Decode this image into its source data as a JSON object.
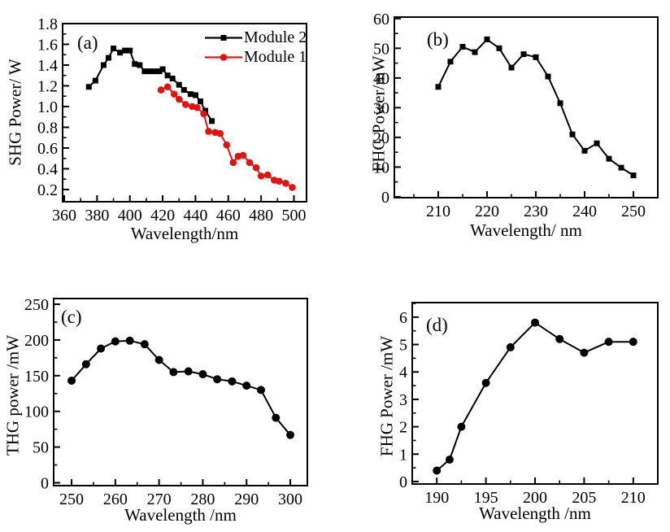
{
  "figure": {
    "background": "#ffffff",
    "frame_color": "#000000",
    "accent_red": "#e21212"
  },
  "chart_data": [
    {
      "id": "a",
      "type": "line",
      "panel_label": "(a)",
      "xlabel": "Wavelength/nm",
      "ylabel": "SHG Power/ W",
      "xlim": [
        359,
        507.7
      ],
      "ylim": [
        0.082,
        1.8
      ],
      "xticks": [
        360,
        380,
        400,
        420,
        440,
        460,
        480,
        500
      ],
      "yticks": [
        0.2,
        0.4,
        0.6,
        0.8,
        1.0,
        1.2,
        1.4,
        1.6,
        1.8
      ],
      "ytick_decimals": 1,
      "x_minor_step": 10,
      "y_minor_step": 0.1,
      "grid": false,
      "legend_position": "top-right",
      "series": [
        {
          "name": "Module 2",
          "color": "#000000",
          "marker": "square",
          "x": [
            375,
            379,
            384,
            387,
            390,
            394,
            397,
            400,
            403,
            406,
            409,
            412,
            415,
            418,
            420,
            423,
            426,
            430,
            433,
            437,
            440,
            443,
            446,
            450
          ],
          "y": [
            1.19,
            1.25,
            1.4,
            1.47,
            1.56,
            1.52,
            1.54,
            1.54,
            1.41,
            1.4,
            1.34,
            1.34,
            1.34,
            1.34,
            1.36,
            1.3,
            1.27,
            1.21,
            1.16,
            1.12,
            1.11,
            1.05,
            0.96,
            0.86
          ]
        },
        {
          "name": "Module 1",
          "color": "#e21212",
          "marker": "circle",
          "x": [
            419,
            423,
            427,
            430,
            434,
            438,
            441,
            445,
            448,
            452,
            455,
            459,
            463,
            466,
            469,
            473,
            477,
            480,
            484,
            488,
            491,
            495,
            499
          ],
          "y": [
            1.16,
            1.19,
            1.12,
            1.07,
            1.02,
            1.0,
            0.99,
            0.93,
            0.76,
            0.75,
            0.74,
            0.63,
            0.46,
            0.52,
            0.53,
            0.46,
            0.41,
            0.33,
            0.34,
            0.29,
            0.28,
            0.26,
            0.22
          ]
        }
      ]
    },
    {
      "id": "b",
      "type": "line",
      "panel_label": "(b)",
      "xlabel": "Wavelength/ nm",
      "ylabel": "FHG Power/mW",
      "xlim": [
        201,
        255
      ],
      "ylim": [
        -0.3,
        60.5
      ],
      "xticks": [
        210,
        220,
        230,
        240,
        250
      ],
      "yticks": [
        0,
        10,
        20,
        30,
        40,
        50,
        60
      ],
      "ytick_decimals": 0,
      "x_minor_step": 5,
      "y_minor_step": 5,
      "grid": false,
      "legend_position": "none",
      "series": [
        {
          "name": "FHG power",
          "color": "#000000",
          "marker": "square",
          "x": [
            210,
            212.5,
            215,
            217.5,
            220,
            222.5,
            225,
            227.5,
            230,
            232.5,
            235,
            237.5,
            240,
            242.5,
            245,
            247.5,
            250
          ],
          "y": [
            37,
            45.5,
            50.5,
            48.7,
            53,
            50,
            43.5,
            48,
            47,
            40.5,
            31.5,
            21,
            15.5,
            18,
            12.8,
            9.8,
            7.2
          ]
        }
      ]
    },
    {
      "id": "c",
      "type": "line",
      "panel_label": "(c)",
      "xlabel": "Wavelength /nm",
      "ylabel": "THG power /mW",
      "xlim": [
        245.9,
        303.9
      ],
      "ylim": [
        -4,
        258
      ],
      "xticks": [
        250,
        260,
        270,
        280,
        290,
        300
      ],
      "yticks": [
        0,
        50,
        100,
        150,
        200,
        250
      ],
      "ytick_decimals": 0,
      "x_minor_step": 5,
      "y_minor_step": 25,
      "grid": false,
      "legend_position": "none",
      "series": [
        {
          "name": "THG power",
          "color": "#000000",
          "marker": "circle",
          "x": [
            250,
            253.3,
            256.7,
            260,
            263.3,
            266.7,
            270,
            273.3,
            276.7,
            280,
            283.3,
            286.7,
            290,
            293.3,
            296.7,
            300
          ],
          "y": [
            143,
            166,
            188,
            198,
            199,
            194,
            172,
            155,
            156,
            152,
            145,
            142,
            136,
            130,
            91,
            67
          ]
        }
      ]
    },
    {
      "id": "d",
      "type": "line",
      "panel_label": "(d)",
      "xlabel": "Wavelength /nm",
      "ylabel": "FHG Power /mW",
      "xlim": [
        187.5,
        212.5
      ],
      "ylim": [
        -0.09,
        6.53
      ],
      "xticks": [
        190,
        195,
        200,
        205,
        210
      ],
      "yticks": [
        0,
        1,
        2,
        3,
        4,
        5,
        6
      ],
      "ytick_decimals": 0,
      "x_minor_step": 2.5,
      "y_minor_step": 0.5,
      "grid": false,
      "legend_position": "none",
      "series": [
        {
          "name": "FHG power",
          "color": "#000000",
          "marker": "circle",
          "x": [
            190,
            191.3,
            192.5,
            195,
            197.5,
            200,
            202.5,
            205,
            207.5,
            210
          ],
          "y": [
            0.4,
            0.8,
            2.0,
            3.6,
            4.9,
            5.8,
            5.2,
            4.7,
            5.1,
            5.1
          ]
        }
      ]
    }
  ]
}
